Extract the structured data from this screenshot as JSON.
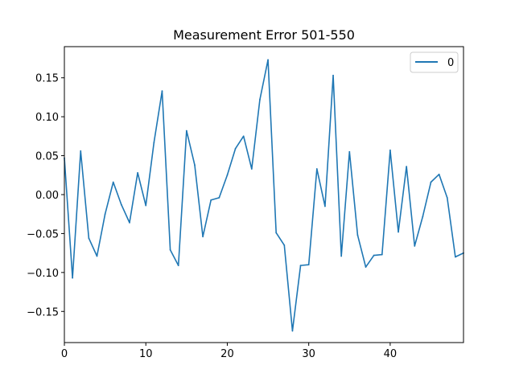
{
  "chart_data": {
    "type": "line",
    "title": "Measurement Error 501-550",
    "xlabel": "",
    "ylabel": "",
    "xlim": [
      0,
      49
    ],
    "ylim": [
      -0.19,
      0.19
    ],
    "x_ticks": [
      0,
      10,
      20,
      30,
      40
    ],
    "x_tick_labels": [
      "0",
      "10",
      "20",
      "30",
      "40"
    ],
    "y_ticks": [
      -0.15,
      -0.1,
      -0.05,
      0.0,
      0.05,
      0.1,
      0.15
    ],
    "y_tick_labels": [
      "−0.15",
      "−0.10",
      "−0.05",
      "0.00",
      "0.05",
      "0.10",
      "0.15"
    ],
    "grid": false,
    "legend_position": "top-right",
    "series": [
      {
        "name": "0",
        "color": "#1f77b4",
        "x": [
          0,
          1,
          2,
          3,
          4,
          5,
          6,
          7,
          8,
          9,
          10,
          11,
          12,
          13,
          14,
          15,
          16,
          17,
          18,
          19,
          20,
          21,
          22,
          23,
          24,
          25,
          26,
          27,
          28,
          29,
          30,
          31,
          32,
          33,
          34,
          35,
          36,
          37,
          38,
          39,
          40,
          41,
          42,
          43,
          44,
          45,
          46,
          47,
          48,
          49
        ],
        "values": [
          0.047,
          -0.107,
          0.056,
          -0.056,
          -0.079,
          -0.025,
          0.016,
          -0.013,
          -0.036,
          0.028,
          -0.014,
          0.067,
          0.133,
          -0.071,
          -0.091,
          0.082,
          0.038,
          -0.054,
          -0.007,
          -0.004,
          0.025,
          0.059,
          0.075,
          0.033,
          0.122,
          0.173,
          -0.049,
          -0.065,
          -0.175,
          -0.091,
          -0.09,
          0.033,
          -0.015,
          0.153,
          -0.079,
          0.055,
          -0.052,
          -0.093,
          -0.078,
          -0.077,
          0.057,
          -0.048,
          0.036,
          -0.066,
          -0.028,
          0.016,
          0.026,
          -0.004,
          -0.08,
          -0.075
        ]
      }
    ]
  }
}
